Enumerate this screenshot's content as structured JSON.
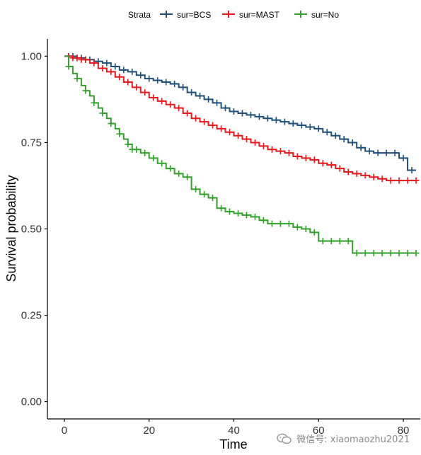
{
  "chart_data": {
    "type": "line",
    "title": "",
    "xlabel": "Time",
    "ylabel": "Survival probability",
    "xlim": [
      -4,
      84
    ],
    "ylim": [
      -0.05,
      1.05
    ],
    "x_ticks": [
      0,
      20,
      40,
      60,
      80
    ],
    "y_ticks": [
      0.0,
      0.25,
      0.5,
      0.75,
      1.0
    ],
    "y_tick_labels": [
      "0.00",
      "0.25",
      "0.50",
      "0.75",
      "1.00"
    ],
    "grid": false,
    "legend": {
      "title": "Strata",
      "position": "top",
      "entries": [
        "sur=BCS",
        "sur=MAST",
        "sur=No"
      ]
    },
    "series": [
      {
        "name": "sur=BCS",
        "color": "#1f4e79",
        "x": [
          0,
          3,
          5,
          7,
          9,
          11,
          13,
          15,
          17,
          19,
          21,
          23,
          25,
          27,
          29,
          31,
          33,
          35,
          37,
          39,
          41,
          43,
          45,
          47,
          49,
          51,
          53,
          55,
          57,
          59,
          61,
          63,
          65,
          67,
          69,
          71,
          73,
          75,
          77,
          79,
          81,
          83
        ],
        "y": [
          1.0,
          0.995,
          0.99,
          0.985,
          0.98,
          0.97,
          0.96,
          0.955,
          0.945,
          0.935,
          0.93,
          0.925,
          0.92,
          0.91,
          0.895,
          0.885,
          0.875,
          0.865,
          0.85,
          0.84,
          0.835,
          0.83,
          0.825,
          0.82,
          0.815,
          0.81,
          0.805,
          0.8,
          0.795,
          0.79,
          0.78,
          0.77,
          0.76,
          0.75,
          0.735,
          0.725,
          0.72,
          0.72,
          0.72,
          0.705,
          0.67,
          0.67
        ],
        "censor_x": [
          1,
          2,
          3,
          4,
          5,
          6,
          8,
          10,
          12,
          14,
          16,
          18,
          20,
          22,
          24,
          26,
          28,
          30,
          32,
          34,
          36,
          38,
          40,
          42,
          44,
          46,
          48,
          50,
          52,
          54,
          56,
          58,
          60,
          62,
          64,
          66,
          68,
          70,
          72,
          74,
          76,
          78,
          80,
          82
        ]
      },
      {
        "name": "sur=MAST",
        "color": "#e41a1c",
        "x": [
          0,
          2,
          4,
          6,
          8,
          10,
          12,
          14,
          16,
          18,
          20,
          22,
          24,
          26,
          28,
          30,
          32,
          34,
          36,
          38,
          40,
          42,
          44,
          46,
          48,
          50,
          52,
          54,
          56,
          58,
          60,
          62,
          64,
          66,
          68,
          70,
          72,
          74,
          76,
          78,
          80,
          83
        ],
        "y": [
          1.0,
          0.995,
          0.99,
          0.98,
          0.965,
          0.955,
          0.94,
          0.925,
          0.91,
          0.895,
          0.88,
          0.87,
          0.86,
          0.85,
          0.835,
          0.82,
          0.81,
          0.8,
          0.79,
          0.78,
          0.77,
          0.76,
          0.75,
          0.74,
          0.73,
          0.725,
          0.72,
          0.71,
          0.705,
          0.7,
          0.69,
          0.685,
          0.675,
          0.665,
          0.66,
          0.655,
          0.65,
          0.645,
          0.64,
          0.64,
          0.64,
          0.64
        ],
        "censor_x": [
          1,
          2,
          3,
          4,
          5,
          7,
          9,
          11,
          13,
          15,
          17,
          19,
          21,
          23,
          25,
          27,
          29,
          31,
          33,
          35,
          37,
          39,
          41,
          43,
          45,
          47,
          49,
          51,
          53,
          55,
          57,
          59,
          61,
          63,
          65,
          67,
          69,
          71,
          73,
          75,
          77,
          79,
          81,
          83
        ]
      },
      {
        "name": "sur=No",
        "color": "#33a02c",
        "x": [
          0,
          1,
          2,
          3,
          4,
          5,
          6,
          7,
          8,
          9,
          10,
          11,
          12,
          13,
          14,
          15,
          16,
          18,
          20,
          22,
          24,
          26,
          28,
          30,
          32,
          34,
          36,
          38,
          40,
          42,
          44,
          46,
          48,
          50,
          52,
          54,
          56,
          58,
          60,
          62,
          64,
          66,
          68,
          70,
          72,
          74,
          76,
          78,
          80,
          83
        ],
        "y": [
          1.0,
          0.97,
          0.95,
          0.935,
          0.915,
          0.9,
          0.885,
          0.865,
          0.85,
          0.835,
          0.82,
          0.805,
          0.79,
          0.775,
          0.76,
          0.745,
          0.73,
          0.72,
          0.705,
          0.69,
          0.675,
          0.66,
          0.65,
          0.615,
          0.6,
          0.59,
          0.56,
          0.55,
          0.545,
          0.54,
          0.535,
          0.525,
          0.515,
          0.515,
          0.515,
          0.505,
          0.5,
          0.49,
          0.465,
          0.465,
          0.465,
          0.465,
          0.43,
          0.43,
          0.43,
          0.43,
          0.43,
          0.43,
          0.43,
          0.43
        ],
        "censor_x": [
          1,
          3,
          5,
          7,
          9,
          11,
          13,
          15,
          16,
          17,
          19,
          21,
          23,
          25,
          27,
          29,
          31,
          33,
          35,
          37,
          39,
          41,
          43,
          45,
          47,
          49,
          51,
          53,
          55,
          57,
          59,
          61,
          63,
          65,
          67,
          69,
          71,
          73,
          75,
          77,
          79,
          81,
          83
        ]
      }
    ]
  },
  "watermark": {
    "text": "微信号: xiaomaozhu2021",
    "icon": "wechat-icon"
  }
}
